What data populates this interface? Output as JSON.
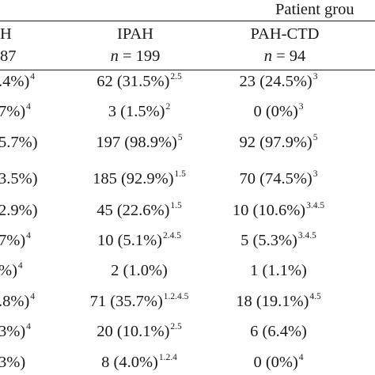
{
  "table": {
    "group_header": "Patient grou",
    "columns": [
      {
        "name": "H",
        "n_label": "",
        "n_value": "87"
      },
      {
        "name": "IPAH",
        "n_label": "n",
        "n_value": " = 199"
      },
      {
        "name": "PAH-CTD",
        "n_label": "n",
        "n_value": " = 94"
      }
    ],
    "rows": [
      [
        {
          "v": ".4%)",
          "s": "4"
        },
        {
          "v": "62 (31.5%)",
          "s": "2.5"
        },
        {
          "v": "23 (24.5%)",
          "s": "3"
        }
      ],
      [
        {
          "v": "7%)",
          "s": "4"
        },
        {
          "v": "3 (1.5%)",
          "s": "2"
        },
        {
          "v": "0 (0%)",
          "s": "3"
        }
      ],
      [
        {
          "v": "5.7%)",
          "s": ""
        },
        {
          "v": "197 (98.9%)",
          "s": "5"
        },
        {
          "v": "92 (97.9%)",
          "s": "5"
        }
      ],
      [
        {
          "v": "3.5%)",
          "s": ""
        },
        {
          "v": "185 (92.9%)",
          "s": "1.5"
        },
        {
          "v": "70 (74.5%)",
          "s": "3"
        }
      ],
      [
        {
          "v": "2.9%)",
          "s": ""
        },
        {
          "v": "45 (22.6%)",
          "s": "1.5"
        },
        {
          "v": "10 (10.6%)",
          "s": "3.4.5"
        }
      ],
      [
        {
          "v": "7%)",
          "s": "4"
        },
        {
          "v": "10 (5.1%)",
          "s": "2.4.5"
        },
        {
          "v": "5 (5.3%)",
          "s": "3.4.5"
        }
      ],
      [
        {
          "v": "%)",
          "s": "4"
        },
        {
          "v": "2 (1.0%)",
          "s": ""
        },
        {
          "v": "1 (1.1%)",
          "s": ""
        }
      ],
      [
        {
          "v": ".8%)",
          "s": "4"
        },
        {
          "v": "71 (35.7%)",
          "s": "1.2.4.5"
        },
        {
          "v": "18 (19.1%)",
          "s": "4.5"
        }
      ],
      [
        {
          "v": "3%)",
          "s": "4"
        },
        {
          "v": "20 (10.1%)",
          "s": "2.5"
        },
        {
          "v": "6 (6.4%)",
          "s": ""
        }
      ],
      [
        {
          "v": "3%)",
          "s": ""
        },
        {
          "v": "8 (4.0%)",
          "s": "1.2.4"
        },
        {
          "v": "0 (0%)",
          "s": "4"
        }
      ]
    ]
  }
}
